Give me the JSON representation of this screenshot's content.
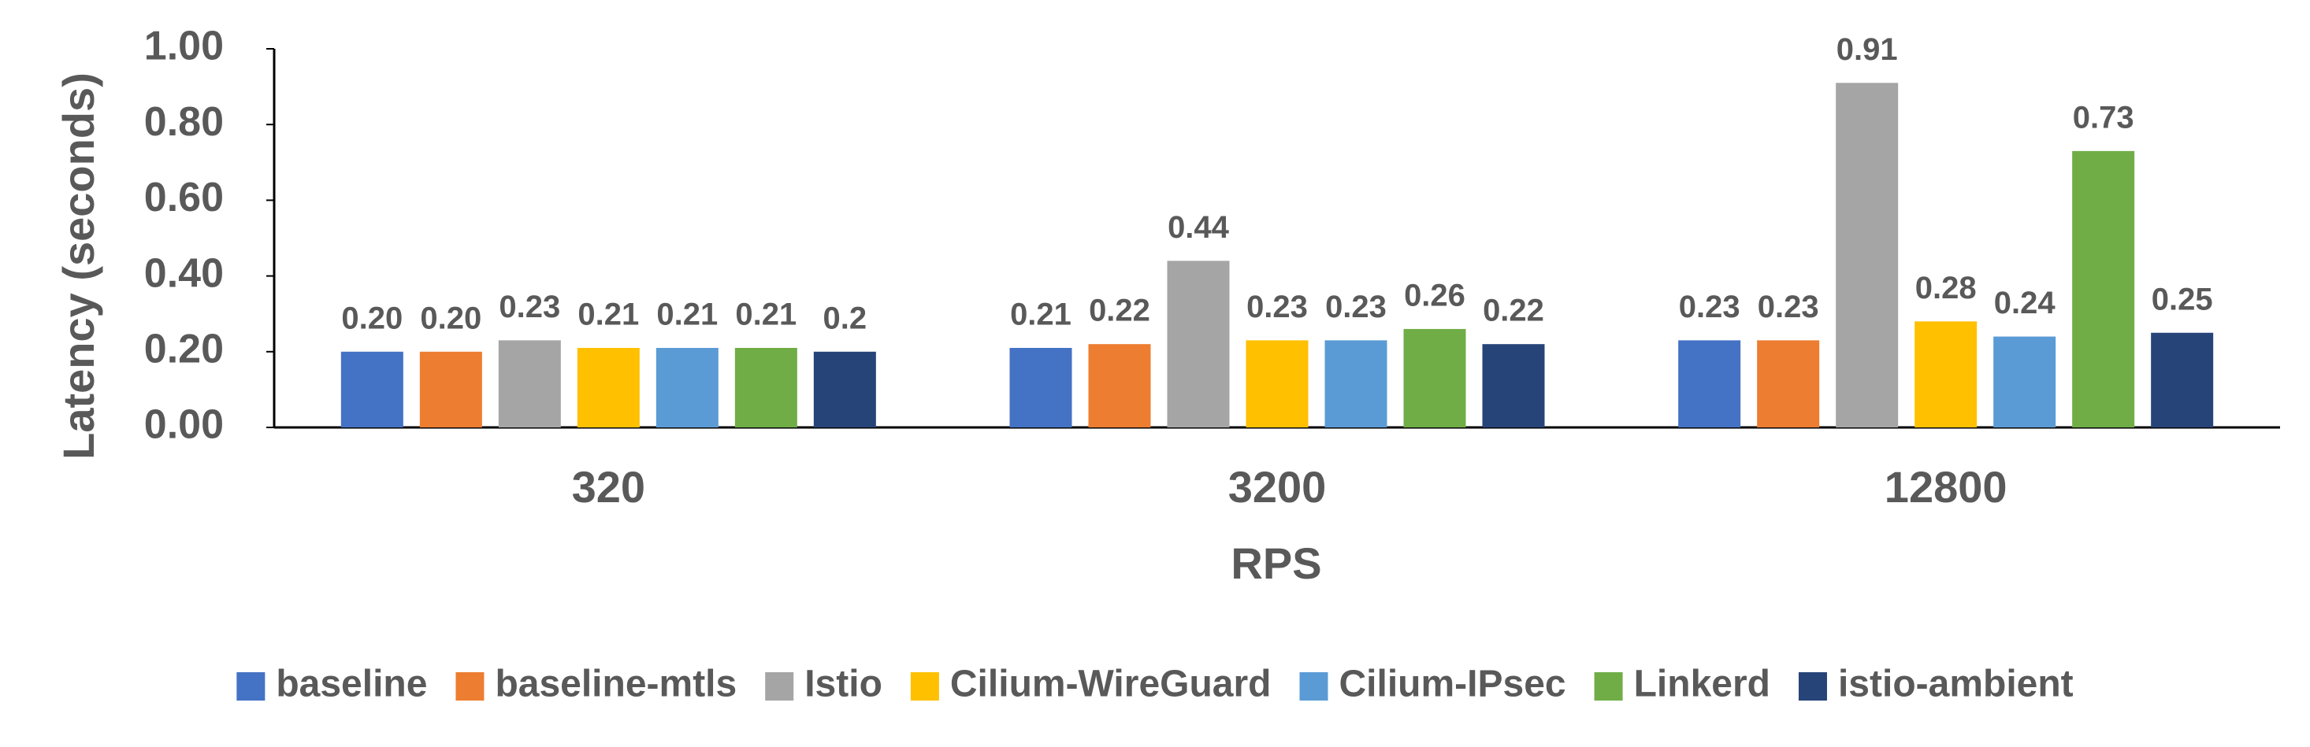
{
  "chart_data": {
    "type": "bar",
    "x_label": "RPS",
    "y_label": "Latency (seconds)",
    "categories": [
      "320",
      "3200",
      "12800"
    ],
    "series": [
      {
        "name": "baseline",
        "color": "#4472c4",
        "values": [
          0.2,
          0.21,
          0.23
        ],
        "value_labels": [
          "0.20",
          "0.21",
          "0.23"
        ]
      },
      {
        "name": "baseline-mtls",
        "color": "#ed7d31",
        "values": [
          0.2,
          0.22,
          0.23
        ],
        "value_labels": [
          "0.20",
          "0.22",
          "0.23"
        ]
      },
      {
        "name": "Istio",
        "color": "#a5a5a5",
        "values": [
          0.23,
          0.44,
          0.91
        ],
        "value_labels": [
          "0.23",
          "0.44",
          "0.91"
        ]
      },
      {
        "name": "Cilium-WireGuard",
        "color": "#ffc000",
        "values": [
          0.21,
          0.23,
          0.28
        ],
        "value_labels": [
          "0.21",
          "0.23",
          "0.28"
        ]
      },
      {
        "name": "Cilium-IPsec",
        "color": "#5b9bd5",
        "values": [
          0.21,
          0.23,
          0.24
        ],
        "value_labels": [
          "0.21",
          "0.23",
          "0.24"
        ]
      },
      {
        "name": "Linkerd",
        "color": "#70ad47",
        "values": [
          0.21,
          0.26,
          0.73
        ],
        "value_labels": [
          "0.21",
          "0.26",
          "0.73"
        ]
      },
      {
        "name": "istio-ambient",
        "color": "#264478",
        "values": [
          0.2,
          0.22,
          0.25
        ],
        "value_labels": [
          "0.2",
          "0.22",
          "0.25"
        ]
      }
    ],
    "ylim": [
      0,
      1
    ],
    "yticks": [
      {
        "value": 0,
        "label": "0.00"
      },
      {
        "value": 0.2,
        "label": "0.20"
      },
      {
        "value": 0.4,
        "label": "0.40"
      },
      {
        "value": 0.6,
        "label": "0.60"
      },
      {
        "value": 0.8,
        "label": "0.80"
      },
      {
        "value": 1,
        "label": "1.00"
      }
    ],
    "grid": false,
    "legend": "bottom"
  }
}
